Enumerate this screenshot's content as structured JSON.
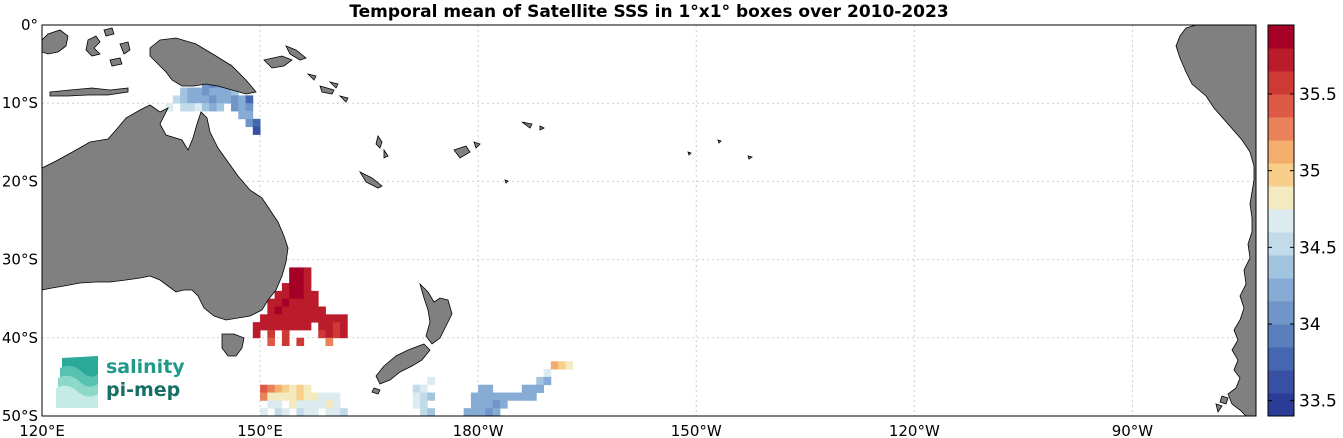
{
  "title": "Temporal mean of Satellite SSS in 1°x1° boxes over 2010-2023",
  "map": {
    "lon_ticks": [
      {
        "lon": 120,
        "label": "120°E"
      },
      {
        "lon": 150,
        "label": "150°E"
      },
      {
        "lon": 180,
        "label": "180°W"
      },
      {
        "lon": 210,
        "label": "150°W"
      },
      {
        "lon": 240,
        "label": "120°W"
      },
      {
        "lon": 270,
        "label": "90°W"
      }
    ],
    "lat_ticks": [
      {
        "lat": 0,
        "label": "0°"
      },
      {
        "lat": -10,
        "label": "10°S"
      },
      {
        "lat": -20,
        "label": "20°S"
      },
      {
        "lat": -30,
        "label": "30°S"
      },
      {
        "lat": -40,
        "label": "40°S"
      },
      {
        "lat": -50,
        "label": "50°S"
      }
    ],
    "lon_range": [
      120,
      287
    ],
    "lat_range": [
      -50,
      0
    ],
    "land_color": "#808080",
    "grid": true
  },
  "colorbar": {
    "range": [
      33.4,
      35.95
    ],
    "ticks": [
      {
        "value": 33.5,
        "label": "33.5"
      },
      {
        "value": 34,
        "label": "34"
      },
      {
        "value": 34.5,
        "label": "34.5"
      },
      {
        "value": 35,
        "label": "35"
      },
      {
        "value": 35.5,
        "label": "35.5"
      }
    ],
    "colors": [
      "#2b3c97",
      "#3750a4",
      "#4566b0",
      "#5a7fbd",
      "#6f95c9",
      "#86acd5",
      "#a1c4df",
      "#c1dbea",
      "#dcebef",
      "#f3eac0",
      "#f7cf8a",
      "#f3ad6c",
      "#e9825a",
      "#dd5a46",
      "#cd3a35",
      "#ba1c2b",
      "#a50026"
    ]
  },
  "logo": {
    "line1": "salinity",
    "line2": "pi-mep"
  },
  "cells": [
    [
      143,
      -5,
      34.4
    ],
    [
      144,
      -5,
      34.2
    ],
    [
      145,
      -5,
      34.3
    ],
    [
      142,
      -6,
      34.1
    ],
    [
      143,
      -6,
      34.0
    ],
    [
      144,
      -6,
      34.2
    ],
    [
      145,
      -6,
      34.4
    ],
    [
      142,
      -7,
      34.0
    ],
    [
      143,
      -7,
      33.9
    ],
    [
      144,
      -7,
      34.0
    ],
    [
      145,
      -7,
      34.1
    ],
    [
      146,
      -7,
      34.3
    ],
    [
      139,
      -8,
      34.4
    ],
    [
      140,
      -8,
      34.3
    ],
    [
      141,
      -8,
      34.2
    ],
    [
      142,
      -8,
      34.1
    ],
    [
      143,
      -8,
      34.2
    ],
    [
      144,
      -8,
      34.3
    ],
    [
      145,
      -8,
      34.2
    ],
    [
      146,
      -8,
      34.4
    ],
    [
      138,
      -9,
      34.5
    ],
    [
      139,
      -9,
      34.4
    ],
    [
      140,
      -9,
      34.3
    ],
    [
      141,
      -9,
      34.3
    ],
    [
      142,
      -9,
      34.2
    ],
    [
      143,
      -9,
      34.1
    ],
    [
      144,
      -9,
      34.3
    ],
    [
      145,
      -9,
      34.2
    ],
    [
      146,
      -9,
      34.1
    ],
    [
      147,
      -9,
      34.3
    ],
    [
      148,
      -9,
      33.7
    ],
    [
      137,
      -10,
      34.6
    ],
    [
      139,
      -10,
      34.5
    ],
    [
      140,
      -10,
      34.5
    ],
    [
      141,
      -10,
      34.6
    ],
    [
      142,
      -10,
      34.4
    ],
    [
      143,
      -10,
      34.3
    ],
    [
      144,
      -10,
      34.4
    ],
    [
      146,
      -10,
      34.1
    ],
    [
      147,
      -10,
      34.2
    ],
    [
      148,
      -10,
      34.0
    ],
    [
      147,
      -11,
      34.3
    ],
    [
      148,
      -11,
      34.2
    ],
    [
      148,
      -12,
      34.0
    ],
    [
      149,
      -12,
      33.8
    ],
    [
      149,
      -13,
      33.6
    ],
    [
      154,
      -31,
      35.9
    ],
    [
      155,
      -31,
      35.9
    ],
    [
      156,
      -31,
      35.8
    ],
    [
      154,
      -32,
      35.9
    ],
    [
      155,
      -32,
      35.9
    ],
    [
      156,
      -32,
      35.8
    ],
    [
      153,
      -33,
      35.8
    ],
    [
      154,
      -33,
      35.9
    ],
    [
      155,
      -33,
      35.9
    ],
    [
      156,
      -33,
      35.8
    ],
    [
      152,
      -34,
      35.8
    ],
    [
      153,
      -34,
      35.8
    ],
    [
      154,
      -34,
      35.9
    ],
    [
      155,
      -34,
      35.9
    ],
    [
      156,
      -34,
      35.8
    ],
    [
      157,
      -34,
      35.7
    ],
    [
      151,
      -35,
      35.8
    ],
    [
      152,
      -35,
      35.8
    ],
    [
      153,
      -35,
      35.9
    ],
    [
      154,
      -35,
      35.8
    ],
    [
      155,
      -35,
      35.8
    ],
    [
      156,
      -35,
      35.8
    ],
    [
      157,
      -35,
      35.8
    ],
    [
      151,
      -36,
      35.8
    ],
    [
      152,
      -36,
      35.9
    ],
    [
      153,
      -36,
      35.8
    ],
    [
      154,
      -36,
      35.8
    ],
    [
      155,
      -36,
      35.8
    ],
    [
      156,
      -36,
      35.8
    ],
    [
      157,
      -36,
      35.7
    ],
    [
      158,
      -36,
      35.7
    ],
    [
      150,
      -37,
      35.8
    ],
    [
      151,
      -37,
      35.8
    ],
    [
      152,
      -37,
      35.8
    ],
    [
      153,
      -37,
      35.8
    ],
    [
      154,
      -37,
      35.8
    ],
    [
      155,
      -37,
      35.8
    ],
    [
      156,
      -37,
      35.7
    ],
    [
      157,
      -37,
      35.8
    ],
    [
      158,
      -37,
      35.8
    ],
    [
      159,
      -37,
      35.7
    ],
    [
      160,
      -37,
      35.7
    ],
    [
      161,
      -37,
      35.7
    ],
    [
      149,
      -38,
      35.8
    ],
    [
      150,
      -38,
      35.7
    ],
    [
      151,
      -38,
      35.7
    ],
    [
      152,
      -38,
      35.8
    ],
    [
      153,
      -38,
      35.7
    ],
    [
      154,
      -38,
      35.7
    ],
    [
      155,
      -38,
      35.8
    ],
    [
      156,
      -38,
      35.7
    ],
    [
      158,
      -38,
      35.7
    ],
    [
      159,
      -38,
      35.7
    ],
    [
      160,
      -38,
      35.6
    ],
    [
      161,
      -38,
      35.7
    ],
    [
      149,
      -39,
      35.7
    ],
    [
      151,
      -39,
      35.6
    ],
    [
      153,
      -39,
      35.6
    ],
    [
      158,
      -39,
      35.6
    ],
    [
      159,
      -39,
      35.7
    ],
    [
      160,
      -39,
      35.6
    ],
    [
      161,
      -39,
      35.7
    ],
    [
      151,
      -40,
      35.5
    ],
    [
      153,
      -40,
      35.6
    ],
    [
      155,
      -40,
      35.6
    ],
    [
      159,
      -40,
      35.3
    ],
    [
      190,
      -43,
      35.1
    ],
    [
      191,
      -43,
      35.0
    ],
    [
      192,
      -43,
      34.9
    ],
    [
      189,
      -44,
      34.6
    ],
    [
      188,
      -45,
      34.4
    ],
    [
      189,
      -45,
      34.3
    ],
    [
      186,
      -46,
      34.3
    ],
    [
      187,
      -46,
      34.3
    ],
    [
      188,
      -46,
      34.2
    ],
    [
      185,
      -47,
      34.3
    ],
    [
      186,
      -47,
      34.2
    ],
    [
      187,
      -47,
      34.2
    ],
    [
      150,
      -46,
      35.4
    ],
    [
      151,
      -46,
      35.3
    ],
    [
      152,
      -46,
      35.1
    ],
    [
      153,
      -46,
      35.0
    ],
    [
      154,
      -46,
      34.9
    ],
    [
      155,
      -46,
      35.0
    ],
    [
      156,
      -46,
      34.8
    ],
    [
      150,
      -47,
      35.2
    ],
    [
      151,
      -47,
      34.9
    ],
    [
      152,
      -47,
      34.8
    ],
    [
      153,
      -47,
      34.9
    ],
    [
      154,
      -47,
      34.9
    ],
    [
      155,
      -47,
      35.0
    ],
    [
      156,
      -47,
      34.9
    ],
    [
      157,
      -47,
      34.8
    ],
    [
      158,
      -47,
      34.7
    ],
    [
      159,
      -47,
      34.6
    ],
    [
      160,
      -47,
      34.7
    ],
    [
      151,
      -48,
      34.7
    ],
    [
      152,
      -48,
      34.6
    ],
    [
      154,
      -48,
      34.8
    ],
    [
      155,
      -48,
      34.7
    ],
    [
      156,
      -48,
      34.6
    ],
    [
      157,
      -48,
      34.7
    ],
    [
      158,
      -48,
      34.6
    ],
    [
      159,
      -48,
      34.8
    ],
    [
      160,
      -48,
      34.7
    ],
    [
      150,
      -49,
      34.6
    ],
    [
      152,
      -49,
      34.5
    ],
    [
      153,
      -49,
      34.6
    ],
    [
      155,
      -49,
      34.5
    ],
    [
      156,
      -49,
      34.6
    ],
    [
      157,
      -49,
      34.6
    ],
    [
      159,
      -49,
      34.7
    ],
    [
      160,
      -49,
      34.6
    ],
    [
      161,
      -49,
      34.5
    ],
    [
      151,
      -50,
      34.5
    ],
    [
      153,
      -50,
      34.6
    ],
    [
      154,
      -50,
      34.4
    ],
    [
      156,
      -50,
      34.5
    ],
    [
      158,
      -50,
      34.3
    ],
    [
      159,
      -50,
      34.2
    ],
    [
      173,
      -45,
      34.6
    ],
    [
      171,
      -46,
      34.5
    ],
    [
      172,
      -46,
      34.6
    ],
    [
      171,
      -47,
      34.6
    ],
    [
      172,
      -47,
      34.5
    ],
    [
      173,
      -47,
      34.4
    ],
    [
      171,
      -48,
      34.6
    ],
    [
      172,
      -48,
      34.5
    ],
    [
      172,
      -49,
      34.5
    ],
    [
      173,
      -49,
      34.4
    ],
    [
      172,
      -50,
      34.5
    ],
    [
      180,
      -46,
      34.3
    ],
    [
      181,
      -46,
      34.2
    ],
    [
      179,
      -47,
      34.3
    ],
    [
      180,
      -47,
      34.2
    ],
    [
      181,
      -47,
      34.3
    ],
    [
      182,
      -47,
      34.2
    ],
    [
      183,
      -47,
      34.2
    ],
    [
      184,
      -47,
      34.2
    ],
    [
      179,
      -48,
      34.3
    ],
    [
      180,
      -48,
      34.2
    ],
    [
      181,
      -48,
      34.2
    ],
    [
      182,
      -48,
      34.1
    ],
    [
      183,
      -48,
      34.3
    ],
    [
      178,
      -49,
      34.3
    ],
    [
      179,
      -49,
      34.2
    ],
    [
      180,
      -49,
      34.2
    ],
    [
      181,
      -49,
      34.1
    ],
    [
      182,
      -49,
      34.2
    ],
    [
      178,
      -50,
      34.2
    ],
    [
      179,
      -50,
      34.3
    ],
    [
      181,
      -50,
      34.1
    ],
    [
      182,
      -50,
      33.8
    ]
  ]
}
